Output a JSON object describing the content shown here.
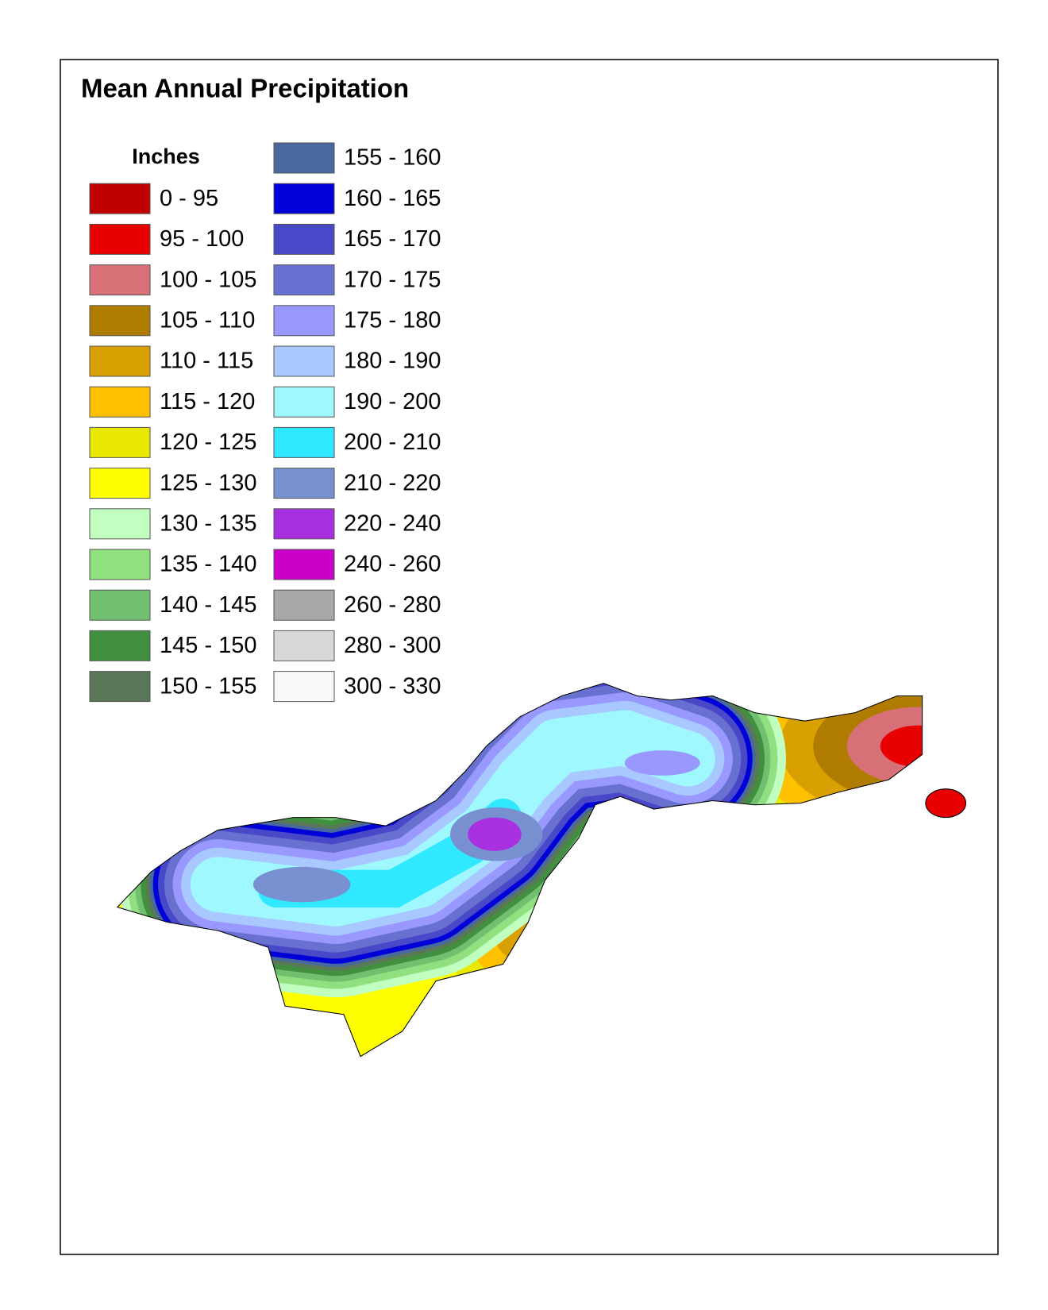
{
  "title": "Mean Annual Precipitation",
  "legend": {
    "title": "Inches",
    "items": [
      {
        "label": "0 - 95",
        "color": "#c00000"
      },
      {
        "label": "95 - 100",
        "color": "#e80000"
      },
      {
        "label": "100 - 105",
        "color": "#d87078"
      },
      {
        "label": "105 - 110",
        "color": "#b07c00"
      },
      {
        "label": "110 - 115",
        "color": "#d8a000"
      },
      {
        "label": "115 - 120",
        "color": "#ffc000"
      },
      {
        "label": "120 - 125",
        "color": "#e8e800"
      },
      {
        "label": "125 - 130",
        "color": "#ffff00"
      },
      {
        "label": "130 - 135",
        "color": "#c0ffc0"
      },
      {
        "label": "135 - 140",
        "color": "#90e080"
      },
      {
        "label": "140 - 145",
        "color": "#70c070"
      },
      {
        "label": "145 - 150",
        "color": "#409040"
      },
      {
        "label": "150 - 155",
        "color": "#5a7858"
      },
      {
        "label": "155 - 160",
        "color": "#4868a0"
      },
      {
        "label": "160 - 165",
        "color": "#0000d8"
      },
      {
        "label": "165 - 170",
        "color": "#4848c8"
      },
      {
        "label": "170 - 175",
        "color": "#6870d0"
      },
      {
        "label": "175 - 180",
        "color": "#9898ff"
      },
      {
        "label": "180 - 190",
        "color": "#a8c8ff"
      },
      {
        "label": "190 - 200",
        "color": "#a0f8ff"
      },
      {
        "label": "200 - 210",
        "color": "#30e8ff"
      },
      {
        "label": "210 - 220",
        "color": "#7890d0"
      },
      {
        "label": "220 - 240",
        "color": "#a830e0"
      },
      {
        "label": "240 - 260",
        "color": "#c800c8"
      },
      {
        "label": "260 - 280",
        "color": "#a8a8a8"
      },
      {
        "label": "280 - 300",
        "color": "#d8d8d8"
      },
      {
        "label": "300 - 330",
        "color": "#f8f8f8"
      }
    ]
  }
}
